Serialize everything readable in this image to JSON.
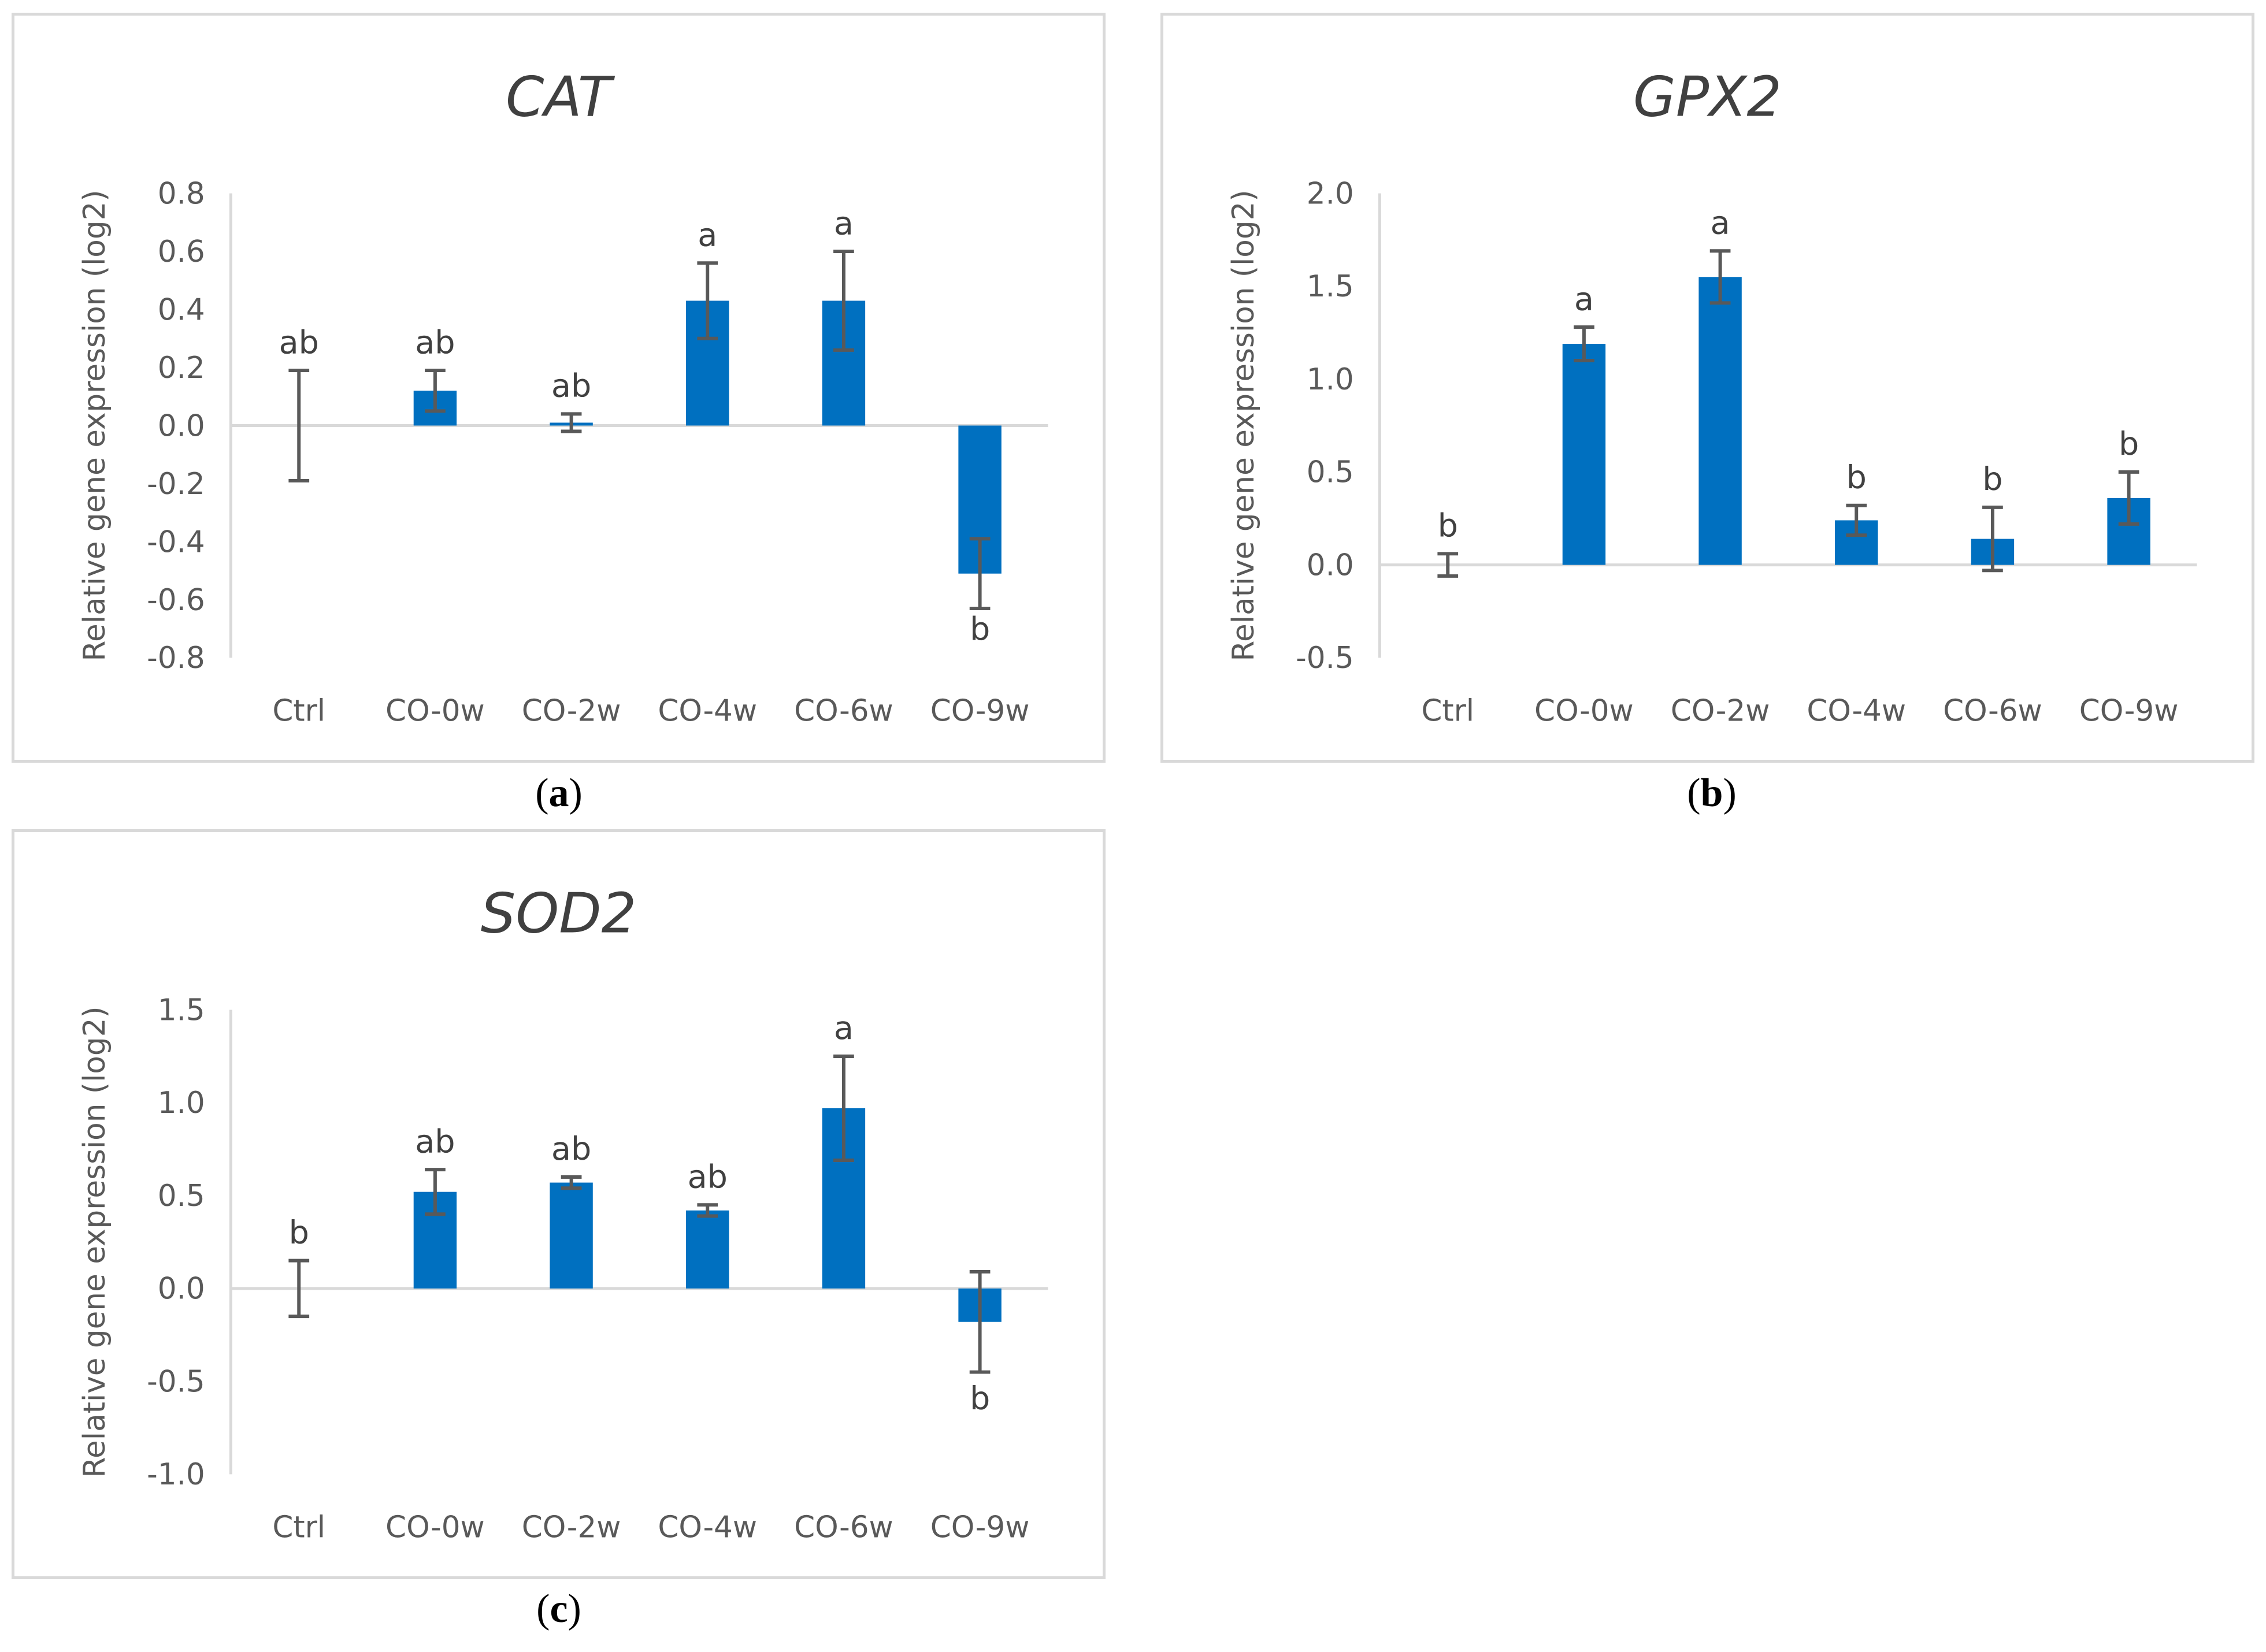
{
  "captions": [
    "a",
    "b",
    "c"
  ],
  "chart_data": [
    {
      "type": "bar",
      "title": "CAT",
      "ylabel": "Relative gene expression (log2)",
      "xlabel": "",
      "categories": [
        "Ctrl",
        "CO-0w",
        "CO-2w",
        "CO-4w",
        "CO-6w",
        "CO-9w"
      ],
      "values": [
        0.0,
        0.12,
        0.01,
        0.43,
        0.43,
        -0.51
      ],
      "errors": [
        0.19,
        0.07,
        0.03,
        0.13,
        0.17,
        0.12
      ],
      "significance": [
        "ab",
        "ab",
        "ab",
        "a",
        "a",
        "b"
      ],
      "ylim": [
        -0.8,
        0.8
      ],
      "yticks": [
        "0.8",
        "0.6",
        "0.4",
        "0.2",
        "0.0",
        "-0.2",
        "-0.4",
        "-0.6",
        "-0.8"
      ],
      "color": "#0070c0"
    },
    {
      "type": "bar",
      "title": "GPX2",
      "ylabel": "Relative gene expression (log2)",
      "xlabel": "",
      "categories": [
        "Ctrl",
        "CO-0w",
        "CO-2w",
        "CO-4w",
        "CO-6w",
        "CO-9w"
      ],
      "values": [
        0.0,
        1.19,
        1.55,
        0.24,
        0.14,
        0.36
      ],
      "errors": [
        0.06,
        0.09,
        0.14,
        0.08,
        0.17,
        0.14
      ],
      "significance": [
        "b",
        "a",
        "a",
        "b",
        "b",
        "b"
      ],
      "ylim": [
        -0.5,
        2.0
      ],
      "yticks": [
        "2.0",
        "1.5",
        "1.0",
        "0.5",
        "0.0",
        "-0.5"
      ],
      "color": "#0070c0"
    },
    {
      "type": "bar",
      "title": "SOD2",
      "ylabel": "Relative gene expression (log2)",
      "xlabel": "",
      "categories": [
        "Ctrl",
        "CO-0w",
        "CO-2w",
        "CO-4w",
        "CO-6w",
        "CO-9w"
      ],
      "values": [
        0.0,
        0.52,
        0.57,
        0.42,
        0.97,
        -0.18
      ],
      "errors": [
        0.15,
        0.12,
        0.03,
        0.03,
        0.28,
        0.27
      ],
      "significance": [
        "b",
        "ab",
        "ab",
        "ab",
        "a",
        "b"
      ],
      "ylim": [
        -1.0,
        1.5
      ],
      "yticks": [
        "1.5",
        "1.0",
        "0.5",
        "0.0",
        "-0.5",
        "-1.0"
      ],
      "color": "#0070c0"
    }
  ]
}
